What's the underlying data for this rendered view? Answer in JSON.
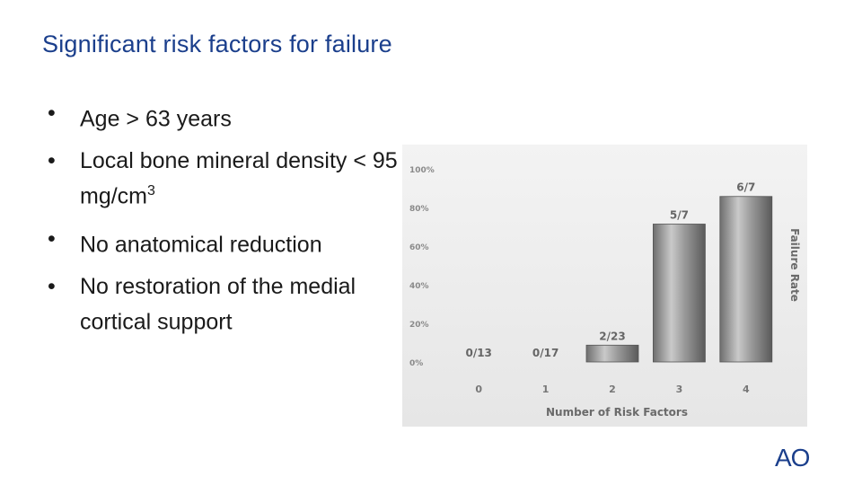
{
  "slide": {
    "title": "Significant risk factors for failure",
    "bullets": [
      {
        "text": "Age > 63 years",
        "sup": ""
      },
      {
        "text": "Local bone mineral density < 95 mg/cm",
        "sup": "3"
      },
      {
        "text": "No anatomical reduction",
        "sup": ""
      },
      {
        "text": "No restoration of the medial cortical support",
        "sup": ""
      }
    ],
    "bullet_marker": "•",
    "logo_text": "AO"
  },
  "colors": {
    "title": "#1b3f8c",
    "logo": "#1b3f8c",
    "bar": "#8a8a8a"
  },
  "chart_data": {
    "type": "bar",
    "categories": [
      "0",
      "1",
      "2",
      "3",
      "4"
    ],
    "values": [
      0,
      0,
      8.7,
      71.4,
      85.7
    ],
    "data_labels": [
      "0/13",
      "0/17",
      "2/23",
      "5/7",
      "6/7"
    ],
    "xlabel": "Number of Risk Factors",
    "ylabel": "Failure Rate",
    "y_ticks": [
      "0%",
      "20%",
      "40%",
      "60%",
      "80%",
      "100%"
    ],
    "ylim": [
      0,
      100
    ],
    "grid": false,
    "legend": "none"
  }
}
